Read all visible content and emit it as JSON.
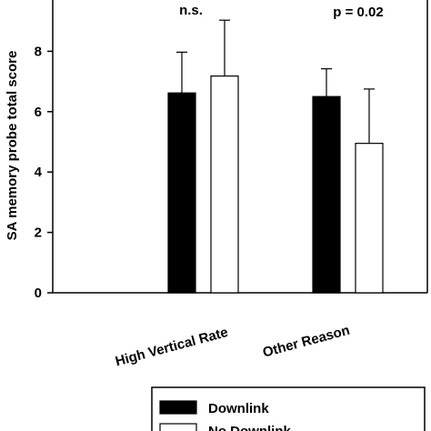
{
  "chart_data": {
    "type": "bar",
    "ylabel": "SA memory probe total score",
    "xlabel": "",
    "ylim": [
      0,
      10
    ],
    "yticks": [
      0,
      2,
      4,
      6,
      8
    ],
    "categories": [
      "High Vertical Rate",
      "Other Reason"
    ],
    "series": [
      {
        "name": "Downlink",
        "color": "#000000",
        "values": [
          6.62,
          6.5
        ],
        "errors": [
          1.35,
          0.92
        ]
      },
      {
        "name": "No Downlink",
        "color": "#ffffff",
        "values": [
          7.18,
          4.95
        ],
        "errors": [
          1.85,
          1.8
        ]
      }
    ],
    "annotations": [
      "n.s.",
      "p = 0.02"
    ],
    "legend_position": "bottom"
  }
}
